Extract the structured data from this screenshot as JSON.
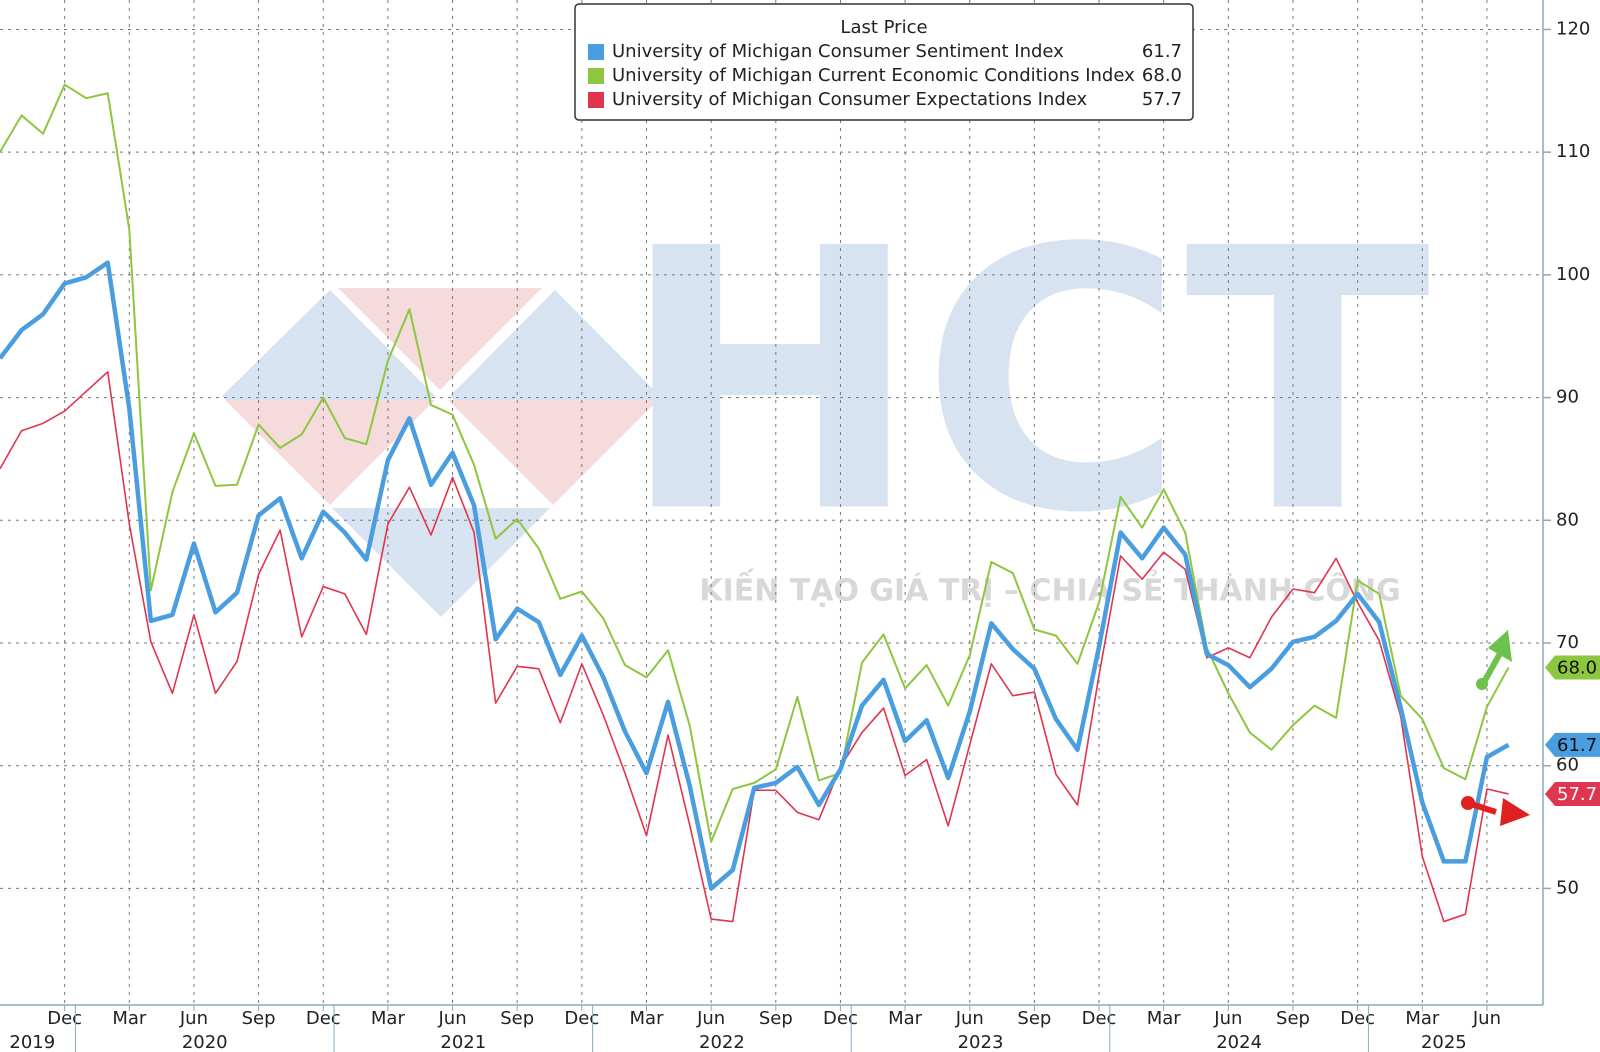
{
  "chart_data": {
    "type": "line",
    "legend_title": "Last Price",
    "x": [
      "2019-09",
      "2019-10",
      "2019-11",
      "2019-12",
      "2020-01",
      "2020-02",
      "2020-03",
      "2020-04",
      "2020-05",
      "2020-06",
      "2020-07",
      "2020-08",
      "2020-09",
      "2020-10",
      "2020-11",
      "2020-12",
      "2021-01",
      "2021-02",
      "2021-03",
      "2021-04",
      "2021-05",
      "2021-06",
      "2021-07",
      "2021-08",
      "2021-09",
      "2021-10",
      "2021-11",
      "2021-12",
      "2022-01",
      "2022-02",
      "2022-03",
      "2022-04",
      "2022-05",
      "2022-06",
      "2022-07",
      "2022-08",
      "2022-09",
      "2022-10",
      "2022-11",
      "2022-12",
      "2023-01",
      "2023-02",
      "2023-03",
      "2023-04",
      "2023-05",
      "2023-06",
      "2023-07",
      "2023-08",
      "2023-09",
      "2023-10",
      "2023-11",
      "2023-12",
      "2024-01",
      "2024-02",
      "2024-03",
      "2024-04",
      "2024-05",
      "2024-06",
      "2024-07",
      "2024-08",
      "2024-09",
      "2024-10",
      "2024-11",
      "2024-12",
      "2025-01",
      "2025-02",
      "2025-03",
      "2025-04",
      "2025-05",
      "2025-06",
      "2025-07"
    ],
    "xticks": [
      {
        "value": "2019-12",
        "label": "Dec"
      },
      {
        "value": "2020-03",
        "label": "Mar"
      },
      {
        "value": "2020-06",
        "label": "Jun"
      },
      {
        "value": "2020-09",
        "label": "Sep"
      },
      {
        "value": "2020-12",
        "label": "Dec"
      },
      {
        "value": "2021-03",
        "label": "Mar"
      },
      {
        "value": "2021-06",
        "label": "Jun"
      },
      {
        "value": "2021-09",
        "label": "Sep"
      },
      {
        "value": "2021-12",
        "label": "Dec"
      },
      {
        "value": "2022-03",
        "label": "Mar"
      },
      {
        "value": "2022-06",
        "label": "Jun"
      },
      {
        "value": "2022-09",
        "label": "Sep"
      },
      {
        "value": "2022-12",
        "label": "Dec"
      },
      {
        "value": "2023-03",
        "label": "Mar"
      },
      {
        "value": "2023-06",
        "label": "Jun"
      },
      {
        "value": "2023-09",
        "label": "Sep"
      },
      {
        "value": "2023-12",
        "label": "Dec"
      },
      {
        "value": "2024-03",
        "label": "Mar"
      },
      {
        "value": "2024-06",
        "label": "Jun"
      },
      {
        "value": "2024-09",
        "label": "Sep"
      },
      {
        "value": "2024-12",
        "label": "Dec"
      },
      {
        "value": "2025-03",
        "label": "Mar"
      },
      {
        "value": "2025-06",
        "label": "Jun"
      }
    ],
    "years": [
      "2019",
      "2020",
      "2021",
      "2022",
      "2023",
      "2024",
      "2025"
    ],
    "series": [
      {
        "name": "University of Michigan Consumer Sentiment Index",
        "color": "#4a9ee0",
        "last_label": "61.7",
        "values": [
          93.2,
          95.5,
          96.8,
          99.3,
          99.8,
          101.0,
          89.1,
          71.8,
          72.3,
          78.1,
          72.5,
          74.1,
          80.4,
          81.8,
          76.9,
          80.7,
          79.0,
          76.8,
          84.9,
          88.3,
          82.9,
          85.5,
          81.2,
          70.3,
          72.8,
          71.7,
          67.4,
          70.6,
          67.2,
          62.8,
          59.4,
          65.2,
          58.4,
          50.0,
          51.5,
          58.2,
          58.6,
          59.9,
          56.8,
          59.7,
          64.9,
          67.0,
          62.0,
          63.7,
          59.0,
          64.4,
          71.6,
          69.5,
          67.9,
          63.8,
          61.3,
          69.7,
          79.0,
          76.9,
          79.4,
          77.2,
          69.1,
          68.2,
          66.4,
          67.9,
          70.1,
          70.5,
          71.8,
          74.0,
          71.7,
          64.7,
          57.0,
          52.2,
          52.2,
          60.7,
          61.7
        ]
      },
      {
        "name": "University of Michigan Current Economic Conditions Index",
        "color": "#8dc63f",
        "last_label": "68.0",
        "values": [
          110,
          113,
          111.5,
          115.5,
          114.4,
          114.8,
          103.7,
          74.3,
          82.3,
          87.1,
          82.8,
          82.9,
          87.8,
          85.9,
          87.0,
          90.0,
          86.7,
          86.2,
          93.0,
          97.2,
          89.4,
          88.6,
          84.5,
          78.5,
          80.1,
          77.7,
          73.6,
          74.2,
          72.0,
          68.2,
          67.2,
          69.4,
          63.3,
          53.8,
          58.1,
          58.6,
          59.7,
          65.6,
          58.8,
          59.4,
          68.4,
          70.7,
          66.3,
          68.2,
          64.9,
          69.0,
          76.6,
          75.7,
          71.1,
          70.6,
          68.3,
          73.3,
          81.9,
          79.4,
          82.5,
          79.0,
          69.6,
          65.9,
          62.7,
          61.3,
          63.3,
          64.9,
          63.9,
          75.1,
          74.0,
          65.7,
          63.8,
          59.8,
          58.9,
          64.8,
          68.0
        ]
      },
      {
        "name": "University of Michigan Consumer Expectations Index",
        "color": "#e0354f",
        "last_label": "57.7",
        "values": [
          84.2,
          87.3,
          87.9,
          88.9,
          90.5,
          92.1,
          79.7,
          70.1,
          65.9,
          72.3,
          65.9,
          68.5,
          75.6,
          79.2,
          70.5,
          74.6,
          74.0,
          70.7,
          79.7,
          82.7,
          78.8,
          83.5,
          79.0,
          65.1,
          68.1,
          67.9,
          63.5,
          68.3,
          64.1,
          59.4,
          54.3,
          62.5,
          55.2,
          47.5,
          47.3,
          58.0,
          58.0,
          56.2,
          55.6,
          59.9,
          62.7,
          64.7,
          59.2,
          60.5,
          55.1,
          61.7,
          68.3,
          65.7,
          66.0,
          59.3,
          56.8,
          67.4,
          77.1,
          75.2,
          77.4,
          76.0,
          68.8,
          69.6,
          68.8,
          72.1,
          74.4,
          74.1,
          76.9,
          73.3,
          70.2,
          64.0,
          52.6,
          47.3,
          47.9,
          58.1,
          57.7
        ]
      }
    ],
    "ylim": [
      40.5,
      122.4
    ],
    "yticks": [
      50,
      60,
      70,
      80,
      90,
      100,
      110,
      120
    ],
    "grid": true
  },
  "watermark": {
    "logo": "HCT",
    "tagline": "KIẾN TẠO GIÁ TRỊ – CHIA SẺ THÀNH CÔNG"
  }
}
